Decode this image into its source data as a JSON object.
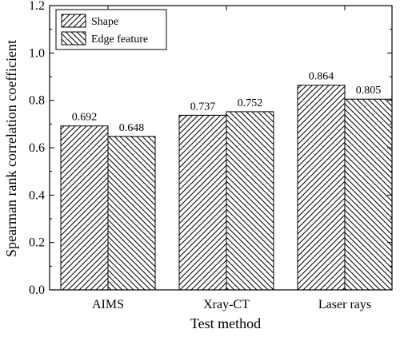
{
  "chart_data": {
    "type": "bar",
    "categories": [
      "AIMS",
      "Xray-CT",
      "Laser rays"
    ],
    "series": [
      {
        "name": "Shape",
        "values": [
          0.692,
          0.737,
          0.864
        ],
        "hatch": "diagonal-up"
      },
      {
        "name": "Edge feature",
        "values": [
          0.648,
          0.752,
          0.805
        ],
        "hatch": "diagonal-down"
      }
    ],
    "data_labels": [
      [
        "0.692",
        "0.737",
        "0.864"
      ],
      [
        "0.648",
        "0.752",
        "0.805"
      ]
    ],
    "title": "",
    "xlabel": "Test method",
    "ylabel": "Spearman rank correlation coefficient",
    "ylim": [
      0.0,
      1.2
    ],
    "yticks": [
      "0.0",
      "0.2",
      "0.4",
      "0.6",
      "0.8",
      "1.0",
      "1.2"
    ],
    "grid": false,
    "legend_position": "top-left",
    "colors": {
      "line": "#000000",
      "background": "#ffffff"
    }
  }
}
